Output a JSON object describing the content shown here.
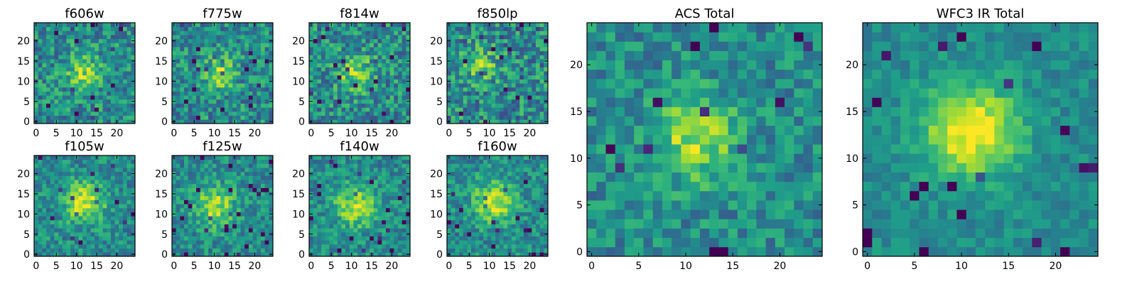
{
  "chart_data": [
    {
      "type": "heatmap",
      "title": "f606w",
      "xticks": [
        "0",
        "5",
        "10",
        "15",
        "20"
      ],
      "yticks": [
        "0",
        "5",
        "10",
        "15",
        "20"
      ],
      "n": 25,
      "peak": [
        12,
        12
      ],
      "sigma": 3.0,
      "amp": 0.35,
      "noise": 0.38,
      "seed": 11
    },
    {
      "type": "heatmap",
      "title": "f775w",
      "xticks": [
        "0",
        "5",
        "10",
        "15",
        "20"
      ],
      "yticks": [
        "0",
        "5",
        "10",
        "15",
        "20"
      ],
      "n": 25,
      "peak": [
        11,
        12
      ],
      "sigma": 3.0,
      "amp": 0.35,
      "noise": 0.38,
      "seed": 23
    },
    {
      "type": "heatmap",
      "title": "f814w",
      "xticks": [
        "0",
        "5",
        "10",
        "15",
        "20"
      ],
      "yticks": [
        "0",
        "5",
        "10",
        "15",
        "20"
      ],
      "n": 25,
      "peak": [
        11,
        12
      ],
      "sigma": 3.0,
      "amp": 0.35,
      "noise": 0.4,
      "seed": 37
    },
    {
      "type": "heatmap",
      "title": "f850lp",
      "xticks": [
        "0",
        "5",
        "10",
        "15",
        "20"
      ],
      "yticks": [
        "0",
        "5",
        "10",
        "15",
        "20"
      ],
      "n": 25,
      "peak": [
        8,
        14
      ],
      "sigma": 3.0,
      "amp": 0.25,
      "noise": 0.42,
      "seed": 41
    },
    {
      "type": "heatmap",
      "title": "f105w",
      "xticks": [
        "0",
        "5",
        "10",
        "15",
        "20"
      ],
      "yticks": [
        "0",
        "5",
        "10",
        "15",
        "20"
      ],
      "n": 25,
      "peak": [
        12,
        13
      ],
      "sigma": 3.5,
      "amp": 0.45,
      "noise": 0.3,
      "seed": 53
    },
    {
      "type": "heatmap",
      "title": "f125w",
      "xticks": [
        "0",
        "5",
        "10",
        "15",
        "20"
      ],
      "yticks": [
        "0",
        "5",
        "10",
        "15",
        "20"
      ],
      "n": 25,
      "peak": [
        10,
        12
      ],
      "sigma": 3.5,
      "amp": 0.4,
      "noise": 0.3,
      "seed": 67
    },
    {
      "type": "heatmap",
      "title": "f140w",
      "xticks": [
        "0",
        "5",
        "10",
        "15",
        "20"
      ],
      "yticks": [
        "0",
        "5",
        "10",
        "15",
        "20"
      ],
      "n": 25,
      "peak": [
        11,
        12
      ],
      "sigma": 3.5,
      "amp": 0.4,
      "noise": 0.3,
      "seed": 71
    },
    {
      "type": "heatmap",
      "title": "f160w",
      "xticks": [
        "0",
        "5",
        "10",
        "15",
        "20"
      ],
      "yticks": [
        "0",
        "5",
        "10",
        "15",
        "20"
      ],
      "n": 25,
      "peak": [
        11,
        13
      ],
      "sigma": 3.5,
      "amp": 0.45,
      "noise": 0.3,
      "seed": 83
    },
    {
      "type": "heatmap",
      "title": "ACS Total",
      "xticks": [
        "0",
        "5",
        "10",
        "15",
        "20"
      ],
      "yticks": [
        "0",
        "5",
        "10",
        "15",
        "20"
      ],
      "n": 25,
      "peak": [
        11,
        12
      ],
      "sigma": 3.0,
      "amp": 0.4,
      "noise": 0.3,
      "seed": 97
    },
    {
      "type": "heatmap",
      "title": "WFC3 IR Total",
      "xticks": [
        "0",
        "5",
        "10",
        "15",
        "20"
      ],
      "yticks": [
        "0",
        "5",
        "10",
        "15",
        "20"
      ],
      "n": 25,
      "peak": [
        11,
        13
      ],
      "sigma": 3.5,
      "amp": 0.55,
      "noise": 0.18,
      "seed": 101
    }
  ],
  "colormap": "viridis"
}
